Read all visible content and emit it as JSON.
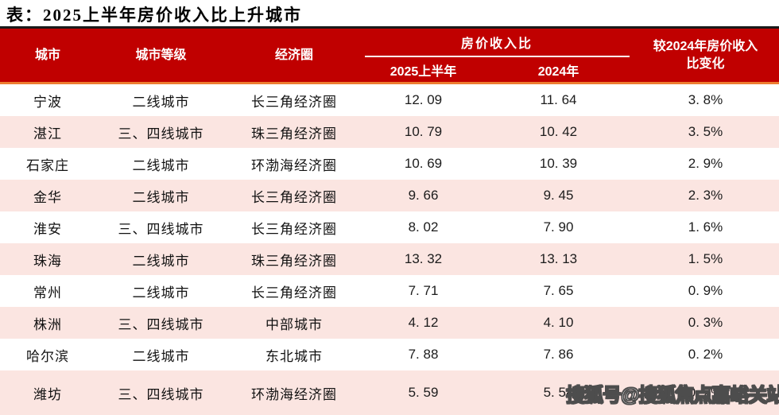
{
  "title": "表：2025上半年房价收入比上升城市",
  "colors": {
    "header_bg": "#C00000",
    "header_text": "#FFFFFF",
    "accent_line_orange": "#ED7D31",
    "top_border": "#1A1A1A",
    "row_alt_pink": "#FBE5E1",
    "row_white": "#FFFFFF"
  },
  "table": {
    "headers": {
      "city": "城市",
      "tier": "城市等级",
      "region": "经济圈",
      "group": "房价收入比",
      "h2025": "2025上半年",
      "h2024": "2024年",
      "change_l1": "较2024年房价收入",
      "change_l2": "比变化"
    },
    "rows": [
      {
        "city": "宁波",
        "tier": "二线城市",
        "region": "长三角经济圈",
        "v2025": "12. 09",
        "v2024": "11. 64",
        "change": "3. 8%"
      },
      {
        "city": "湛江",
        "tier": "三、四线城市",
        "region": "珠三角经济圈",
        "v2025": "10. 79",
        "v2024": "10. 42",
        "change": "3. 5%"
      },
      {
        "city": "石家庄",
        "tier": "二线城市",
        "region": "环渤海经济圈",
        "v2025": "10. 69",
        "v2024": "10. 39",
        "change": "2. 9%"
      },
      {
        "city": "金华",
        "tier": "二线城市",
        "region": "长三角经济圈",
        "v2025": "9. 66",
        "v2024": "9. 45",
        "change": "2. 3%"
      },
      {
        "city": "淮安",
        "tier": "三、四线城市",
        "region": "长三角经济圈",
        "v2025": "8. 02",
        "v2024": "7. 90",
        "change": "1. 6%"
      },
      {
        "city": "珠海",
        "tier": "二线城市",
        "region": "珠三角经济圈",
        "v2025": "13. 32",
        "v2024": "13. 13",
        "change": "1. 5%"
      },
      {
        "city": "常州",
        "tier": "二线城市",
        "region": "长三角经济圈",
        "v2025": "7. 71",
        "v2024": "7. 65",
        "change": "0. 9%"
      },
      {
        "city": "株洲",
        "tier": "三、四线城市",
        "region": "中部城市",
        "v2025": "4. 12",
        "v2024": "4. 10",
        "change": "0. 3%"
      },
      {
        "city": "哈尔滨",
        "tier": "二线城市",
        "region": "东北城市",
        "v2025": "7. 88",
        "v2024": "7. 86",
        "change": "0. 2%"
      },
      {
        "city": "潍坊",
        "tier": "三、四线城市",
        "region": "环渤海经济圈",
        "v2025": "5. 59",
        "v2024": "5. 58",
        "change": "0. 2%"
      }
    ]
  },
  "watermark": "搜狐号@搜狐焦点嘉峪关站"
}
